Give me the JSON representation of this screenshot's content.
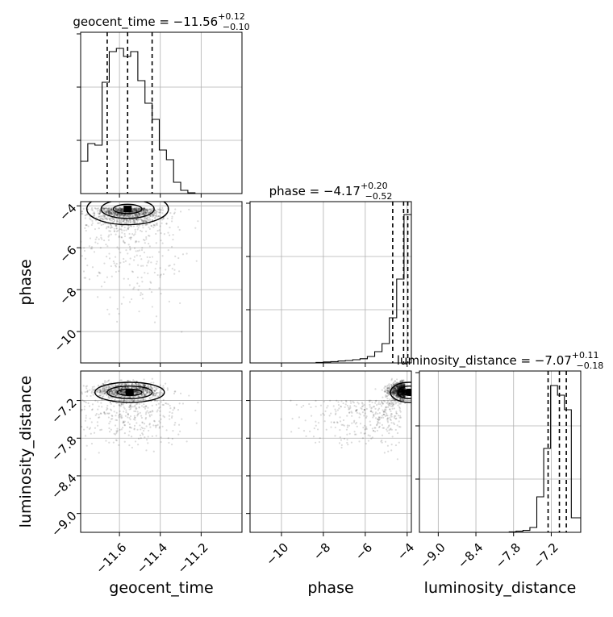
{
  "chart_data": {
    "type": "corner",
    "parameters": [
      "geocent_time",
      "phase",
      "luminosity_distance"
    ],
    "titles": [
      {
        "text": "geocent_time = −11.56",
        "plus": "+0.12",
        "minus": "−0.10"
      },
      {
        "text": "phase = −4.17",
        "plus": "+0.20",
        "minus": "−0.52"
      },
      {
        "text": "luminosity_distance = −7.07",
        "plus": "+0.11",
        "minus": "−0.18"
      }
    ],
    "ranges": [
      [
        -11.79,
        -11.0
      ],
      [
        -11.5,
        -3.8
      ],
      [
        -9.3,
        -6.73
      ]
    ],
    "ticks": [
      [
        "−11.6",
        "−11.4",
        "−11.2"
      ],
      [
        "−10",
        "−8",
        "−6",
        "−4"
      ],
      [
        "−9.0",
        "−8.4",
        "−7.8",
        "−7.2"
      ]
    ],
    "tick_values": [
      [
        -11.6,
        -11.4,
        -11.2
      ],
      [
        -10,
        -8,
        -6,
        -4
      ],
      [
        -9.0,
        -8.4,
        -7.8,
        -7.2
      ]
    ],
    "quantiles": [
      [
        -11.66,
        -11.56,
        -11.44
      ],
      [
        -4.69,
        -4.17,
        -3.97
      ],
      [
        -7.25,
        -7.07,
        -6.96
      ]
    ],
    "histograms": [
      {
        "edges": [
          -11.79,
          -11.755,
          -11.72,
          -11.685,
          -11.65,
          -11.615,
          -11.58,
          -11.545,
          -11.51,
          -11.475,
          -11.44,
          -11.405,
          -11.37,
          -11.335,
          -11.3,
          -11.265,
          -11.23,
          -11.195,
          -11.16,
          -11.125,
          -11.09,
          -11.055,
          -11.02
        ],
        "values": [
          0.2,
          0.31,
          0.3,
          0.69,
          0.88,
          0.9,
          0.85,
          0.88,
          0.7,
          0.56,
          0.46,
          0.27,
          0.21,
          0.07,
          0.02,
          0.005,
          0,
          0,
          0,
          0,
          0,
          0
        ]
      },
      {
        "edges": [
          -11.5,
          -11.15,
          -10.8,
          -10.45,
          -10.1,
          -9.75,
          -9.4,
          -9.05,
          -8.7,
          -8.35,
          -8.0,
          -7.65,
          -7.3,
          -6.95,
          -6.6,
          -6.25,
          -5.9,
          -5.55,
          -5.2,
          -4.85,
          -4.5,
          -4.15,
          -3.8
        ],
        "values": [
          0,
          0,
          0,
          0,
          0,
          0,
          0,
          0,
          0,
          0.003,
          0.006,
          0.008,
          0.012,
          0.015,
          0.02,
          0.026,
          0.04,
          0.07,
          0.12,
          0.28,
          0.52,
          0.92
        ]
      },
      {
        "edges": [
          -9.3,
          -9.19,
          -9.08,
          -8.97,
          -8.86,
          -8.75,
          -8.64,
          -8.53,
          -8.42,
          -8.31,
          -8.2,
          -8.09,
          -7.98,
          -7.87,
          -7.76,
          -7.65,
          -7.54,
          -7.43,
          -7.32,
          -7.21,
          -7.1,
          -6.99,
          -6.88,
          -6.73
        ],
        "values": [
          0,
          0,
          0,
          0,
          0,
          0,
          0,
          0,
          0,
          0,
          0,
          0,
          0,
          0.003,
          0.007,
          0.012,
          0.03,
          0.22,
          0.52,
          0.91,
          0.85,
          0.76,
          0.09
        ]
      }
    ],
    "grid": true
  }
}
